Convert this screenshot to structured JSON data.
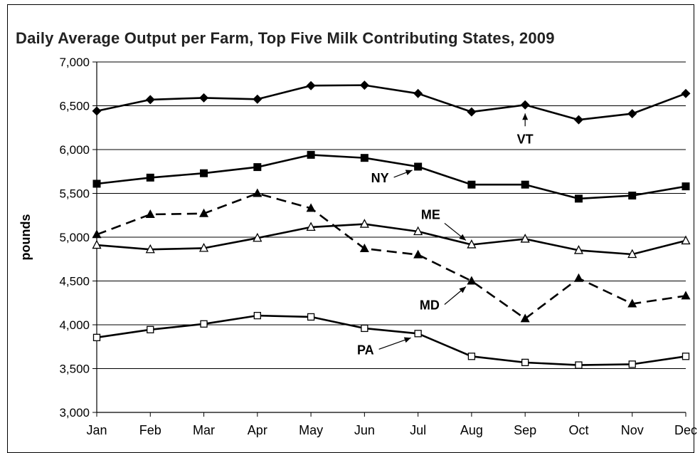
{
  "chart_data": {
    "type": "line",
    "title": "Daily Average Output per Farm, Top Five Milk Contributing States, 2009",
    "xlabel": "",
    "ylabel": "pounds",
    "categories": [
      "Jan",
      "Feb",
      "Mar",
      "Apr",
      "May",
      "Jun",
      "Jul",
      "Aug",
      "Sep",
      "Oct",
      "Nov",
      "Dec"
    ],
    "ylim": [
      3000,
      7000
    ],
    "yticks": [
      "3,000",
      "3,500",
      "4,000",
      "4,500",
      "5,000",
      "5,500",
      "6,000",
      "6,500",
      "7,000"
    ],
    "grid": true,
    "legend": "none",
    "series": [
      {
        "name": "VT",
        "marker": "diamond",
        "dash": "solid",
        "values": [
          6440,
          6570,
          6590,
          6575,
          6730,
          6735,
          6640,
          6430,
          6510,
          6340,
          6410,
          6640
        ]
      },
      {
        "name": "NY",
        "marker": "square",
        "dash": "solid",
        "values": [
          5610,
          5680,
          5730,
          5800,
          5940,
          5905,
          5805,
          5600,
          5600,
          5440,
          5475,
          5580
        ]
      },
      {
        "name": "ME",
        "marker": "triangle-open",
        "dash": "solid",
        "values": [
          4910,
          4860,
          4875,
          4990,
          5115,
          5150,
          5065,
          4915,
          4980,
          4850,
          4805,
          4960
        ]
      },
      {
        "name": "MD",
        "marker": "triangle",
        "dash": "dashed",
        "values": [
          5030,
          5260,
          5270,
          5500,
          5330,
          4870,
          4800,
          4500,
          4070,
          4530,
          4240,
          4330
        ]
      },
      {
        "name": "PA",
        "marker": "square-open",
        "dash": "solid",
        "values": [
          3855,
          3945,
          4010,
          4105,
          4090,
          3960,
          3900,
          3640,
          3570,
          3540,
          3550,
          3640
        ]
      }
    ],
    "annotations": [
      {
        "text": "VT",
        "series": "VT",
        "point": 8
      },
      {
        "text": "NY",
        "series": "NY",
        "point": 6
      },
      {
        "text": "ME",
        "series": "ME",
        "point": 7
      },
      {
        "text": "MD",
        "series": "MD",
        "point": 7
      },
      {
        "text": "PA",
        "series": "PA",
        "point": 6
      }
    ]
  }
}
